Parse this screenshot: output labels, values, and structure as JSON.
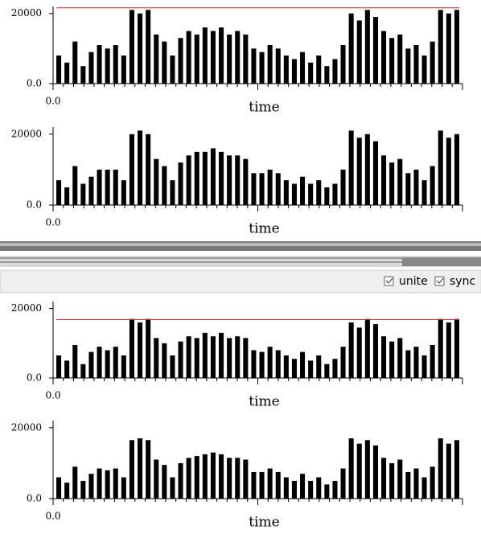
{
  "panels": [
    {
      "threshold": 21600,
      "threshold_color": "#cc2222",
      "ylim": [
        0,
        22000
      ],
      "yticks": [
        {
          "value": 0,
          "label": "0.0"
        },
        20000
      ],
      "xticks": [
        {
          "value": 0,
          "label": "0.0"
        }
      ],
      "xlabel": "time",
      "color": "#000000",
      "values": [
        8000,
        6000,
        12000,
        5000,
        9000,
        11000,
        10000,
        11000,
        8000,
        21000,
        20000,
        21000,
        14000,
        12000,
        8000,
        13000,
        15000,
        14000,
        16000,
        15000,
        16000,
        14000,
        15000,
        14000,
        10000,
        9000,
        11000,
        10000,
        8000,
        7000,
        9000,
        6000,
        8000,
        5000,
        7000,
        11000,
        20000,
        18000,
        21000,
        19000,
        15000,
        13000,
        14000,
        10000,
        11000,
        8000,
        12000,
        21000,
        20000,
        21000
      ]
    },
    {
      "ylim": [
        0,
        22000
      ],
      "yticks": [
        {
          "value": 0,
          "label": "0.0"
        },
        20000
      ],
      "xticks": [
        {
          "value": 0,
          "label": "0.0"
        }
      ],
      "xlabel": "time",
      "color": "#000000",
      "values": [
        7000,
        5000,
        11000,
        6000,
        8000,
        10000,
        10000,
        10000,
        7000,
        20000,
        21000,
        20000,
        13000,
        11000,
        7000,
        12000,
        14000,
        15000,
        15000,
        16000,
        15000,
        14000,
        14000,
        13000,
        9000,
        9000,
        10000,
        9000,
        7000,
        6000,
        8000,
        6000,
        7000,
        5000,
        6000,
        10000,
        21000,
        19000,
        20000,
        18000,
        14000,
        12000,
        13000,
        9000,
        10000,
        7000,
        11000,
        21000,
        19000,
        20000
      ]
    },
    {
      "threshold": 16800,
      "threshold_color": "#cc2222",
      "ylim": [
        0,
        22000
      ],
      "yticks": [
        {
          "value": 0,
          "label": "0.0"
        },
        20000
      ],
      "xticks": [
        {
          "value": 0,
          "label": "0.0"
        }
      ],
      "xlabel": "time",
      "color": "#000000",
      "values": [
        6500,
        5000,
        9500,
        4000,
        7500,
        9000,
        8000,
        9000,
        6500,
        17000,
        16000,
        17000,
        11500,
        10000,
        6500,
        10500,
        12000,
        11500,
        13000,
        12000,
        13000,
        11500,
        12000,
        11500,
        8000,
        7500,
        9000,
        8000,
        6500,
        5500,
        7500,
        5000,
        6500,
        4000,
        5500,
        9000,
        16000,
        14500,
        17000,
        15500,
        12000,
        10500,
        11500,
        8000,
        9000,
        6500,
        9500,
        17000,
        16000,
        17000
      ]
    },
    {
      "ylim": [
        0,
        22000
      ],
      "yticks": [
        {
          "value": 0,
          "label": "0.0"
        },
        20000
      ],
      "xticks": [
        {
          "value": 0,
          "label": "0.0"
        }
      ],
      "xlabel": "time",
      "color": "#000000",
      "values": [
        6000,
        4500,
        9000,
        5000,
        7000,
        8500,
        8000,
        8500,
        6000,
        16500,
        17000,
        16500,
        11000,
        9500,
        6000,
        10000,
        11500,
        12000,
        12500,
        13000,
        12500,
        11500,
        11500,
        11000,
        7500,
        7500,
        8500,
        7500,
        6000,
        5000,
        7000,
        5000,
        6000,
        4000,
        5000,
        8500,
        17000,
        15500,
        16500,
        15000,
        11500,
        10000,
        11000,
        7500,
        8500,
        6000,
        9000,
        17000,
        15500,
        16500
      ]
    }
  ],
  "toolbar": {
    "unite": "unite",
    "sync": "sync"
  }
}
